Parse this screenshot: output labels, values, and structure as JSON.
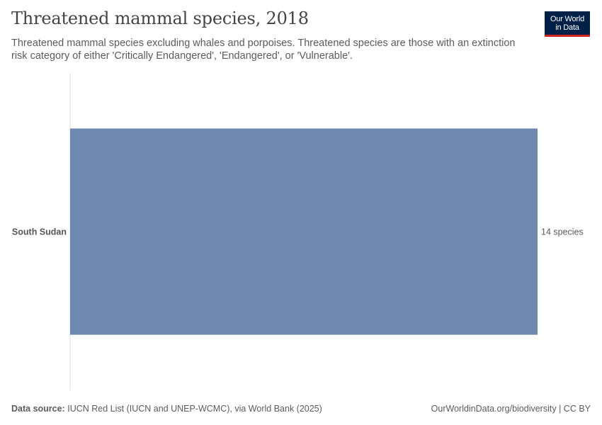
{
  "header": {
    "title": "Threatened mammal species, 2018",
    "subtitle": "Threatened mammal species excluding whales and porpoises. Threatened species are those with an extinction risk category of either 'Critically Endangered', 'Endangered', or 'Vulnerable'.",
    "logo_text": "Our World\nin Data"
  },
  "footer": {
    "source_label": "Data source:",
    "source_text": "IUCN Red List (IUCN and UNEP-WCMC), via World Bank (2025)",
    "credit": "OurWorldinData.org/biodiversity | CC BY"
  },
  "colors": {
    "bar": "#6f88b0",
    "axis": "#dddddd",
    "logo_bg": "#002147",
    "logo_accent": "#ce261e"
  },
  "chart_data": {
    "type": "bar",
    "orientation": "horizontal",
    "title": "Threatened mammal species, 2018",
    "categories": [
      "South Sudan"
    ],
    "values": [
      14
    ],
    "value_labels": [
      "14 species"
    ],
    "unit": "species",
    "xlim": [
      0,
      14
    ],
    "grid": false
  }
}
